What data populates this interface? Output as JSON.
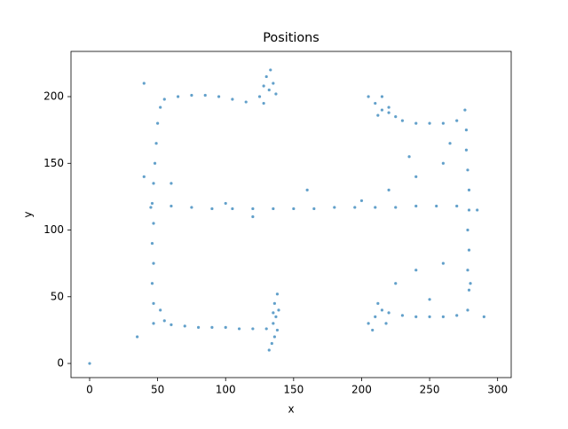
{
  "chart_data": {
    "type": "scatter",
    "title": "Positions",
    "x_label": "x",
    "y_label": "y",
    "color": "#1f77b4",
    "xlim": [
      -13.7,
      310
    ],
    "ylim": [
      -10.6,
      233.9
    ],
    "xticks": [
      0,
      50,
      100,
      150,
      200,
      250,
      300
    ],
    "yticks": [
      0,
      50,
      100,
      150,
      200
    ],
    "x": [
      0,
      47,
      47,
      46,
      47,
      46,
      47,
      46,
      47,
      48,
      49,
      50,
      52,
      45,
      60,
      75,
      90,
      105,
      120,
      135,
      150,
      165,
      180,
      195,
      210,
      225,
      240,
      255,
      270,
      278,
      279,
      278,
      279,
      278,
      279,
      279,
      278,
      277,
      277,
      276,
      55,
      65,
      75,
      85,
      95,
      105,
      115,
      125,
      128,
      130,
      132,
      128,
      135,
      133,
      137,
      205,
      210,
      215,
      220,
      225,
      230,
      240,
      250,
      260,
      270,
      215,
      220,
      212,
      52,
      55,
      60,
      70,
      80,
      90,
      100,
      110,
      120,
      130,
      132,
      134,
      136,
      138,
      135,
      137,
      139,
      136,
      138,
      135,
      205,
      210,
      215,
      220,
      230,
      240,
      250,
      260,
      270,
      208,
      212,
      218,
      260,
      240,
      225,
      280,
      250,
      260,
      240,
      220,
      200,
      265,
      235,
      160,
      40,
      35,
      290,
      285,
      40,
      60,
      100,
      120
    ],
    "values": [
      0,
      30,
      45,
      60,
      75,
      90,
      105,
      120,
      135,
      150,
      165,
      180,
      192,
      117,
      118,
      117,
      116,
      116,
      116,
      116,
      116,
      116,
      117,
      117,
      117,
      117,
      118,
      118,
      118,
      40,
      55,
      70,
      85,
      100,
      115,
      130,
      145,
      160,
      175,
      190,
      198,
      200,
      201,
      201,
      200,
      198,
      196,
      200,
      208,
      215,
      205,
      195,
      210,
      220,
      202,
      200,
      195,
      190,
      188,
      185,
      182,
      180,
      180,
      180,
      182,
      200,
      192,
      186,
      40,
      32,
      29,
      28,
      27,
      27,
      27,
      26,
      26,
      26,
      10,
      15,
      20,
      25,
      30,
      35,
      40,
      45,
      52,
      38,
      30,
      35,
      40,
      38,
      36,
      35,
      35,
      35,
      36,
      25,
      45,
      30,
      75,
      70,
      60,
      60,
      48,
      150,
      140,
      130,
      122,
      165,
      155,
      130,
      140,
      20,
      35,
      115,
      210,
      135,
      120,
      110
    ]
  }
}
